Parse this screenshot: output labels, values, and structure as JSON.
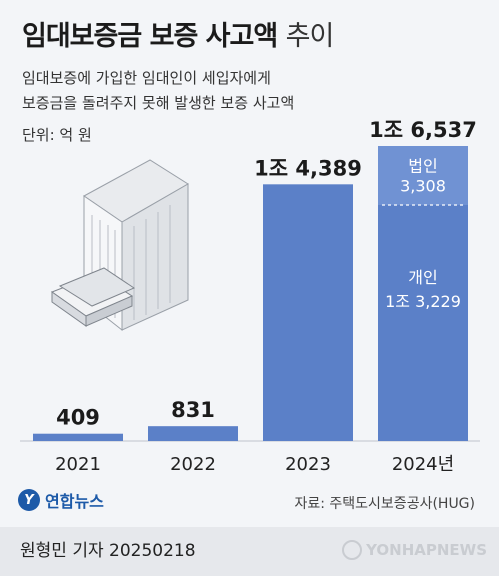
{
  "header": {
    "title_bold": "임대보증금 보증 사고액",
    "title_light": "추이",
    "subtitle_line1": "임대보증에 가입한 임대인이 세입자에게",
    "subtitle_line2": "보증금을 돌려주지 못해 발생한 보증 사고액",
    "unit": "단위: 억 원"
  },
  "chart_data": {
    "type": "bar",
    "categories": [
      "2021",
      "2022",
      "2023",
      "2024년"
    ],
    "values": [
      409,
      831,
      14389,
      16537
    ],
    "value_labels": [
      "409",
      "831",
      "1조 4,389",
      "1조 6,537"
    ],
    "ylim": [
      0,
      16537
    ],
    "stacked_breakdown": {
      "category": "2024년",
      "segments": [
        {
          "name": "개인",
          "value": 13229,
          "label": "1조 3,229"
        },
        {
          "name": "법인",
          "value": 3308,
          "label": "3,308"
        }
      ]
    },
    "bar_color": "#5b80c8",
    "bar_color_top": "#7092d3"
  },
  "source": "자료: 주택도시보증공사(HUG)",
  "logo_text": "연합뉴스",
  "reporter": "원형민 기자  20250218",
  "watermark": "YONHAPNEWS"
}
